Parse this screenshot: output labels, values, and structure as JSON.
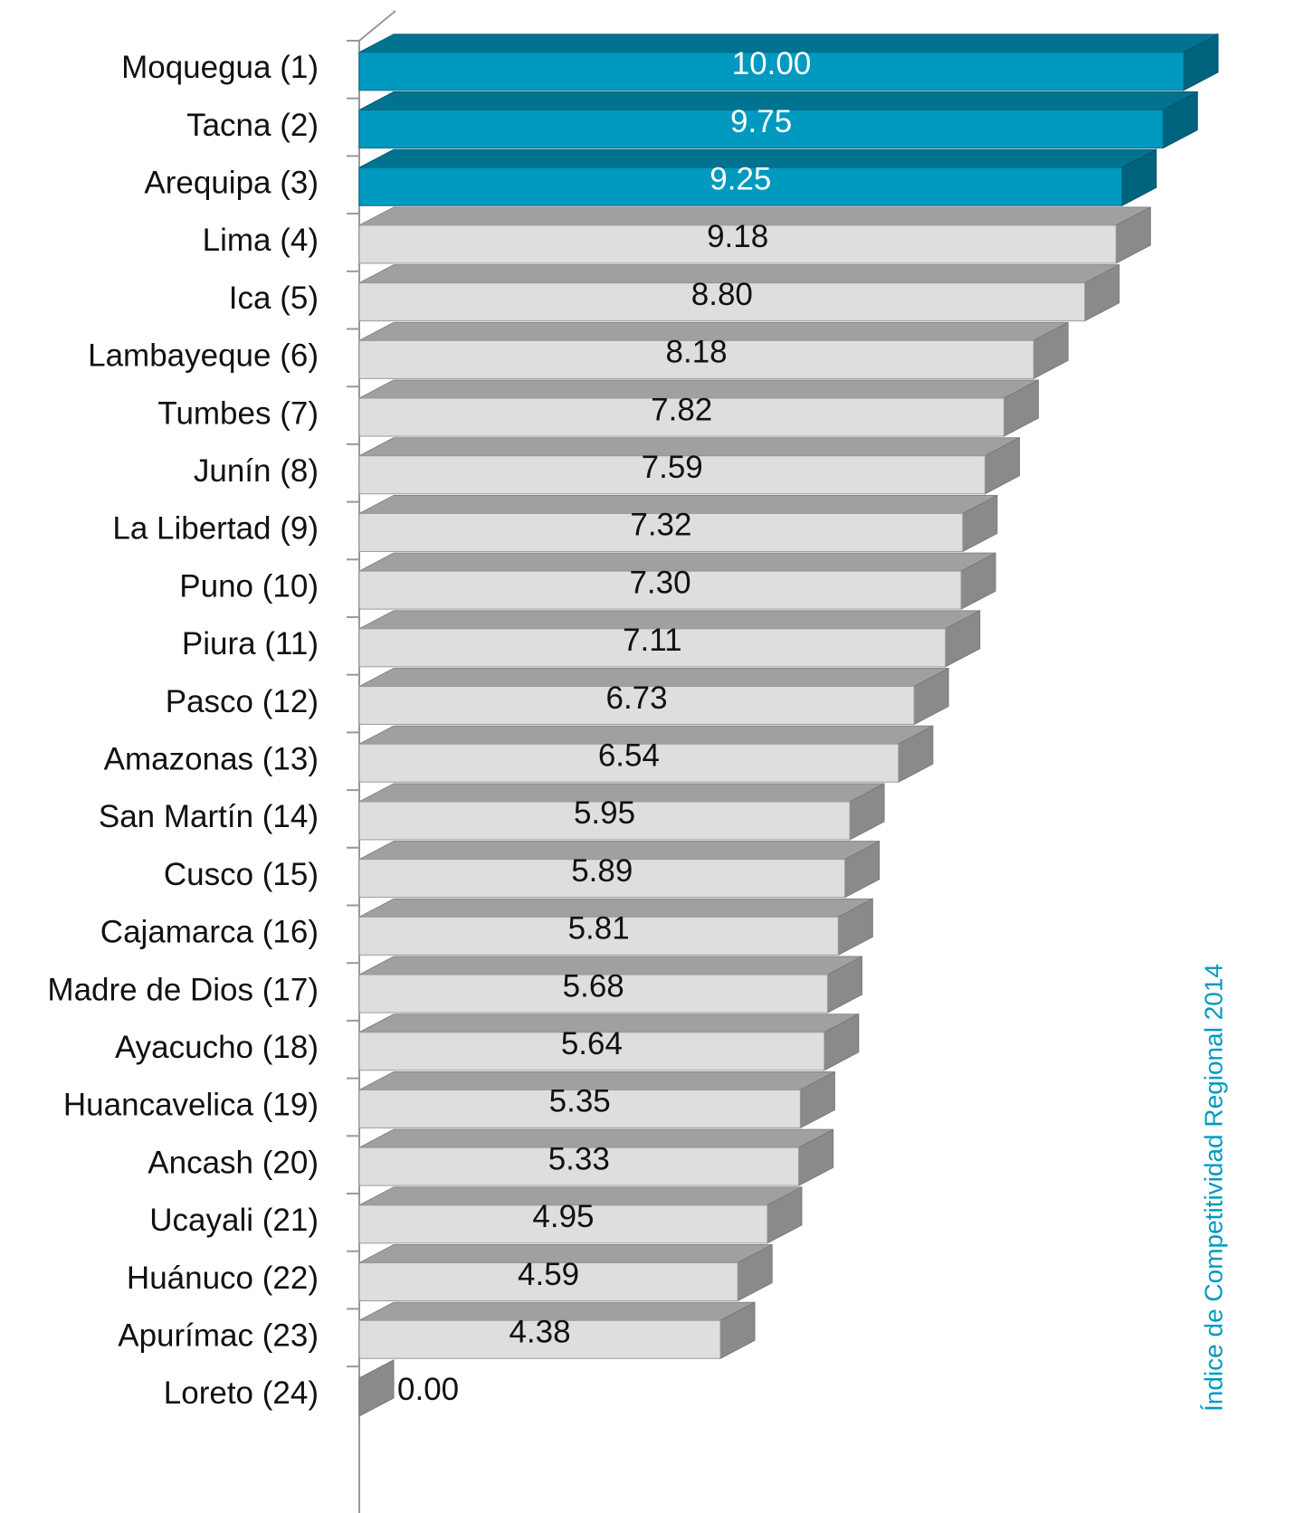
{
  "chart_data": {
    "type": "bar3d",
    "categories": [
      "Moquegua (1)",
      "Tacna (2)",
      "Arequipa (3)",
      "Lima (4)",
      "Ica (5)",
      "Lambayeque (6)",
      "Tumbes (7)",
      "Junín (8)",
      "La Libertad (9)",
      "Puno (10)",
      "Piura (11)",
      "Pasco (12)",
      "Amazonas (13)",
      "San Martín (14)",
      "Cusco (15)",
      "Cajamarca (16)",
      "Madre de Dios (17)",
      "Ayacucho (18)",
      "Huancavelica (19)",
      "Ancash (20)",
      "Ucayali (21)",
      "Huánuco (22)",
      "Apurímac (23)",
      "Loreto (24)"
    ],
    "values": [
      10,
      9.75,
      9.25,
      9.18,
      8.8,
      8.18,
      7.82,
      7.59,
      7.32,
      7.3,
      7.11,
      6.73,
      6.54,
      5.95,
      5.89,
      5.81,
      5.68,
      5.64,
      5.35,
      5.33,
      4.95,
      4.59,
      4.38,
      0
    ],
    "value_labels": [
      "10.00",
      "9.75",
      "9.25",
      "9.18",
      "8.80",
      "8.18",
      "7.82",
      "7.59",
      "7.32",
      "7.30",
      "7.11",
      "6.73",
      "6.54",
      "5.95",
      "5.89",
      "5.81",
      "5.68",
      "5.64",
      "5.35",
      "5.33",
      "4.95",
      "4.59",
      "4.38",
      "0.00"
    ],
    "colors": [
      "#0099c0",
      "#0099c0",
      "#0099c0",
      "#dedede",
      "#dedede",
      "#dedede",
      "#dedede",
      "#dedede",
      "#dedede",
      "#dedede",
      "#dedede",
      "#dedede",
      "#dedede",
      "#dedede",
      "#dedede",
      "#dedede",
      "#dedede",
      "#dedede",
      "#dedede",
      "#dedede",
      "#dedede",
      "#dedede",
      "#dedede",
      "#dedede"
    ],
    "annotation": "Índice de Competitividad Regional 2014"
  }
}
